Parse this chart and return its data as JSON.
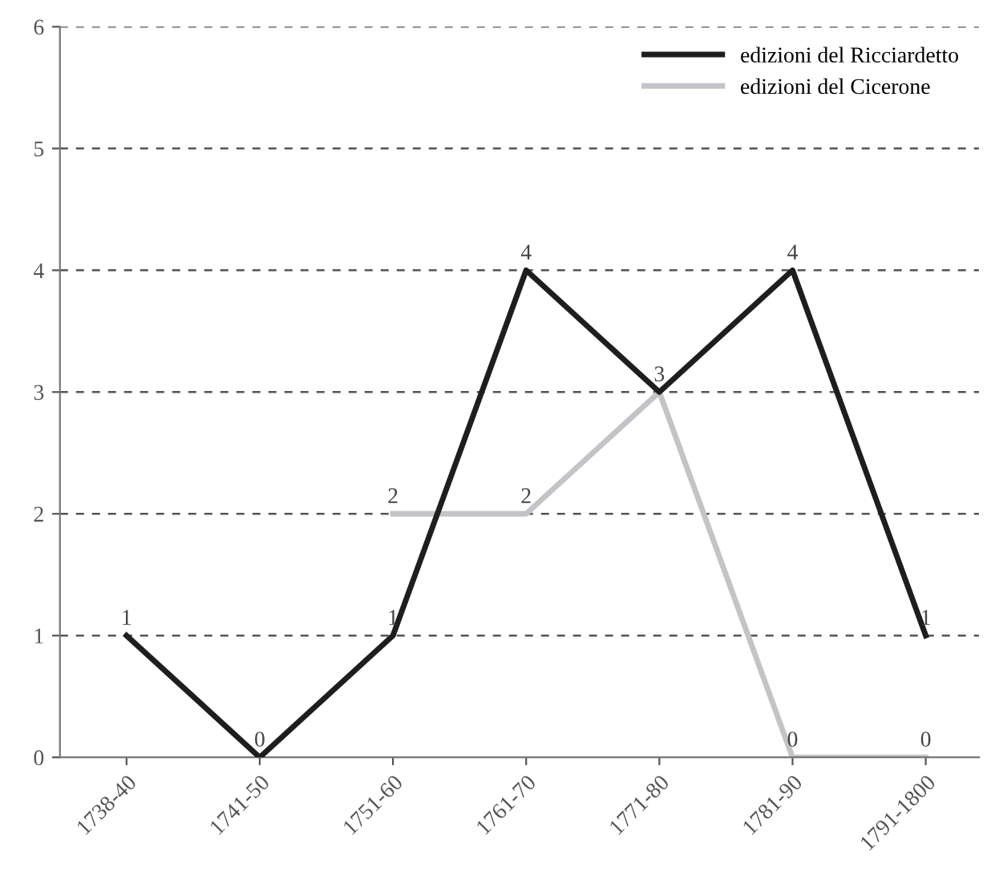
{
  "chart_data": {
    "type": "line",
    "categories": [
      "1738-40",
      "1741-50",
      "1751-60",
      "1761-70",
      "1771-80",
      "1781-90",
      "1791-1800"
    ],
    "series": [
      {
        "name": "edizioni del Ricciardetto",
        "color": "#1e1e1e",
        "values": [
          1,
          0,
          1,
          4,
          3,
          4,
          1
        ]
      },
      {
        "name": "edizioni del Cicerone",
        "color": "#c4c4c8",
        "values": [
          null,
          null,
          2,
          2,
          3,
          0,
          0
        ],
        "value_labels": [
          null,
          null,
          "2",
          "2",
          null,
          "0",
          "0"
        ]
      }
    ],
    "ylim": [
      0,
      6
    ],
    "yticks": [
      0,
      1,
      2,
      3,
      4,
      5,
      6
    ],
    "grid": "y",
    "legend": "top right",
    "data_labels": true
  }
}
